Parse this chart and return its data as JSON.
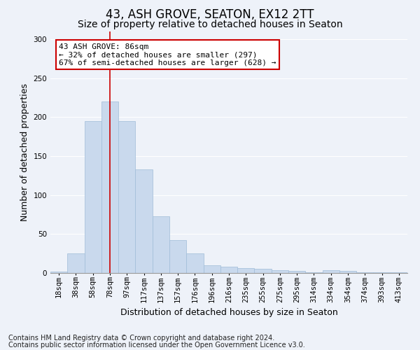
{
  "title": "43, ASH GROVE, SEATON, EX12 2TT",
  "subtitle": "Size of property relative to detached houses in Seaton",
  "xlabel": "Distribution of detached houses by size in Seaton",
  "ylabel": "Number of detached properties",
  "bar_labels": [
    "18sqm",
    "38sqm",
    "58sqm",
    "78sqm",
    "97sqm",
    "117sqm",
    "137sqm",
    "157sqm",
    "176sqm",
    "196sqm",
    "216sqm",
    "235sqm",
    "255sqm",
    "275sqm",
    "295sqm",
    "314sqm",
    "334sqm",
    "354sqm",
    "374sqm",
    "393sqm",
    "413sqm"
  ],
  "bar_heights": [
    2,
    25,
    195,
    220,
    195,
    133,
    73,
    42,
    25,
    10,
    8,
    6,
    5,
    4,
    3,
    1,
    4,
    3,
    1,
    1,
    1
  ],
  "bar_color": "#c9d9ed",
  "bar_edgecolor": "#a0bcd8",
  "property_bar_index": 3,
  "vline_color": "#cc0000",
  "annotation_text": "43 ASH GROVE: 86sqm\n← 32% of detached houses are smaller (297)\n67% of semi-detached houses are larger (628) →",
  "annotation_box_color": "#ffffff",
  "annotation_box_edgecolor": "#cc0000",
  "ylim": [
    0,
    310
  ],
  "yticks": [
    0,
    50,
    100,
    150,
    200,
    250,
    300
  ],
  "footnote1": "Contains HM Land Registry data © Crown copyright and database right 2024.",
  "footnote2": "Contains public sector information licensed under the Open Government Licence v3.0.",
  "background_color": "#eef2f9",
  "grid_color": "#ffffff",
  "title_fontsize": 12,
  "subtitle_fontsize": 10,
  "xlabel_fontsize": 9,
  "ylabel_fontsize": 9,
  "footnote_fontsize": 7,
  "tick_fontsize": 7.5,
  "annotation_fontsize": 8
}
